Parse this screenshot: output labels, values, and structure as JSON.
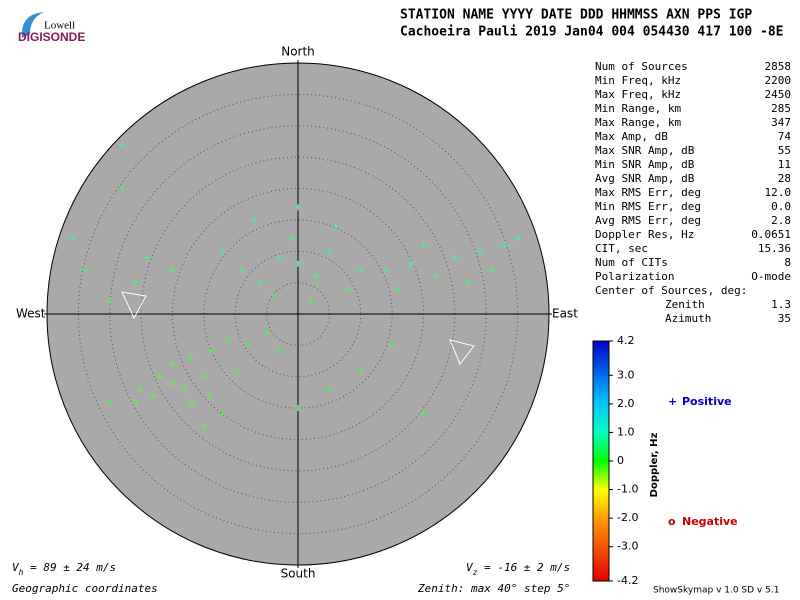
{
  "logo": {
    "top": "Lowell",
    "bottom": "DIGISONDE"
  },
  "header": [
    "STATION NAME    YYYY DATE  DDD HHMMSS AXN PPS IGP",
    "Cachoeira Pauli 2019 Jan04 004 054430 417 100 -8E"
  ],
  "stats": [
    [
      "Num of Sources",
      "2858"
    ],
    [
      "Min Freq, kHz",
      "2200"
    ],
    [
      "Max Freq, kHz",
      "2450"
    ],
    [
      "Min Range, km",
      "285"
    ],
    [
      "Max Range, km",
      "347"
    ],
    [
      "Max Amp, dB",
      "74"
    ],
    [
      "Max SNR Amp, dB",
      "55"
    ],
    [
      "Min SNR Amp, dB",
      "11"
    ],
    [
      "Avg SNR Amp, dB",
      "28"
    ],
    [
      "Max RMS Err, deg",
      "12.0"
    ],
    [
      "Min RMS Err, deg",
      "0.0"
    ],
    [
      "Avg RMS Err, deg",
      "2.8"
    ],
    [
      "Doppler Res, Hz",
      "0.0651"
    ],
    [
      "CIT, sec",
      "15.36"
    ],
    [
      "Num of CITs",
      "8"
    ],
    [
      "Polarization",
      "O-mode"
    ]
  ],
  "center_label": "Center of Sources, deg:",
  "center_rows": [
    [
      "Zenith",
      "1.3"
    ],
    [
      "Azimuth",
      "35"
    ]
  ],
  "footer": {
    "vh_v": "V",
    "vh_sub": "h",
    "vh_rest": " = 89 ± 24 m/s",
    "vz_v": "V",
    "vz_sub": "z",
    "vz_rest": " = -16 ± 2 m/s",
    "coords": "Geographic coordinates",
    "zenith": "Zenith: max 40°  step 5°",
    "version": "ShowSkymap v 1.0  SD v 5.1"
  },
  "chart_data": {
    "type": "skymap",
    "directions": {
      "north": "North",
      "south": "South",
      "west": "West",
      "east": "East"
    },
    "xlim": [
      -40,
      40
    ],
    "ylim": [
      -40,
      40
    ],
    "ring_step": 5,
    "colorbar": {
      "label": "Doppler, Hz",
      "clim": [
        -4.2,
        4.2
      ],
      "ticks": [
        4.2,
        {
          "value": 3,
          "label": "3.0"
        },
        {
          "value": 2,
          "label": "2.0"
        },
        {
          "value": 1,
          "label": "1.0"
        },
        0,
        {
          "value": -1,
          "label": "-1.0"
        },
        {
          "value": -2,
          "label": "-2.0"
        },
        {
          "value": -3,
          "label": "-3.0"
        },
        -4.2
      ]
    },
    "series": [
      {
        "name": "Positive",
        "marker": "+",
        "color": "#0000cc",
        "x": [
          0,
          3,
          -3,
          -6,
          5,
          -1,
          8,
          -9,
          2,
          -4,
          10,
          -12,
          6,
          -7,
          0,
          14,
          18,
          22,
          25,
          29,
          33,
          35,
          20,
          27,
          31,
          16,
          -20,
          -26,
          -34,
          -30,
          -24,
          -36,
          -17,
          -20,
          -14,
          -11,
          -8,
          -22,
          -15,
          -5,
          -3,
          -10,
          -25,
          -18,
          0,
          5,
          -12,
          10,
          -30,
          15,
          -28,
          -28,
          20
        ],
        "y": [
          8,
          6,
          9,
          5,
          10,
          12,
          4,
          7,
          2,
          3,
          7,
          10,
          14,
          15,
          17,
          7,
          8,
          6,
          9,
          10,
          11,
          12,
          11,
          5,
          7,
          4,
          7,
          5,
          7,
          2,
          9,
          12,
          -7,
          -8,
          -6,
          -4,
          -5,
          -10,
          -10,
          -3,
          -6,
          -9,
          -12,
          -12,
          -15,
          -12,
          -16,
          -9,
          -14,
          -5,
          20,
          27,
          -16
        ],
        "doppler": [
          0.8,
          0.7,
          0.9,
          0.6,
          0.8,
          0.7,
          0.6,
          0.7,
          0.5,
          0.6,
          0.7,
          0.8,
          0.9,
          0.8,
          1.0,
          0.7,
          0.8,
          0.7,
          0.8,
          0.9,
          0.8,
          0.9,
          0.7,
          0.6,
          0.7,
          0.6,
          0.6,
          0.5,
          0.6,
          0.5,
          0.7,
          0.8,
          -0.2,
          -0.3,
          -0.1,
          0.1,
          0.2,
          -0.3,
          -0.2,
          0.2,
          0.3,
          0.0,
          -0.3,
          -0.3,
          0.4,
          0.3,
          0.2,
          0.4,
          0.1,
          0.5,
          0.6,
          0.8,
          0.4
        ]
      },
      {
        "name": "Negative",
        "marker": "o",
        "color": "#cc0000",
        "x": [
          -20,
          -17,
          -23,
          -14,
          -26,
          -15
        ],
        "y": [
          -11,
          -14,
          -13,
          -13,
          -14,
          -18
        ],
        "doppler": [
          -0.4,
          -0.3,
          -0.5,
          -0.3,
          -0.4,
          -0.3
        ]
      }
    ]
  }
}
